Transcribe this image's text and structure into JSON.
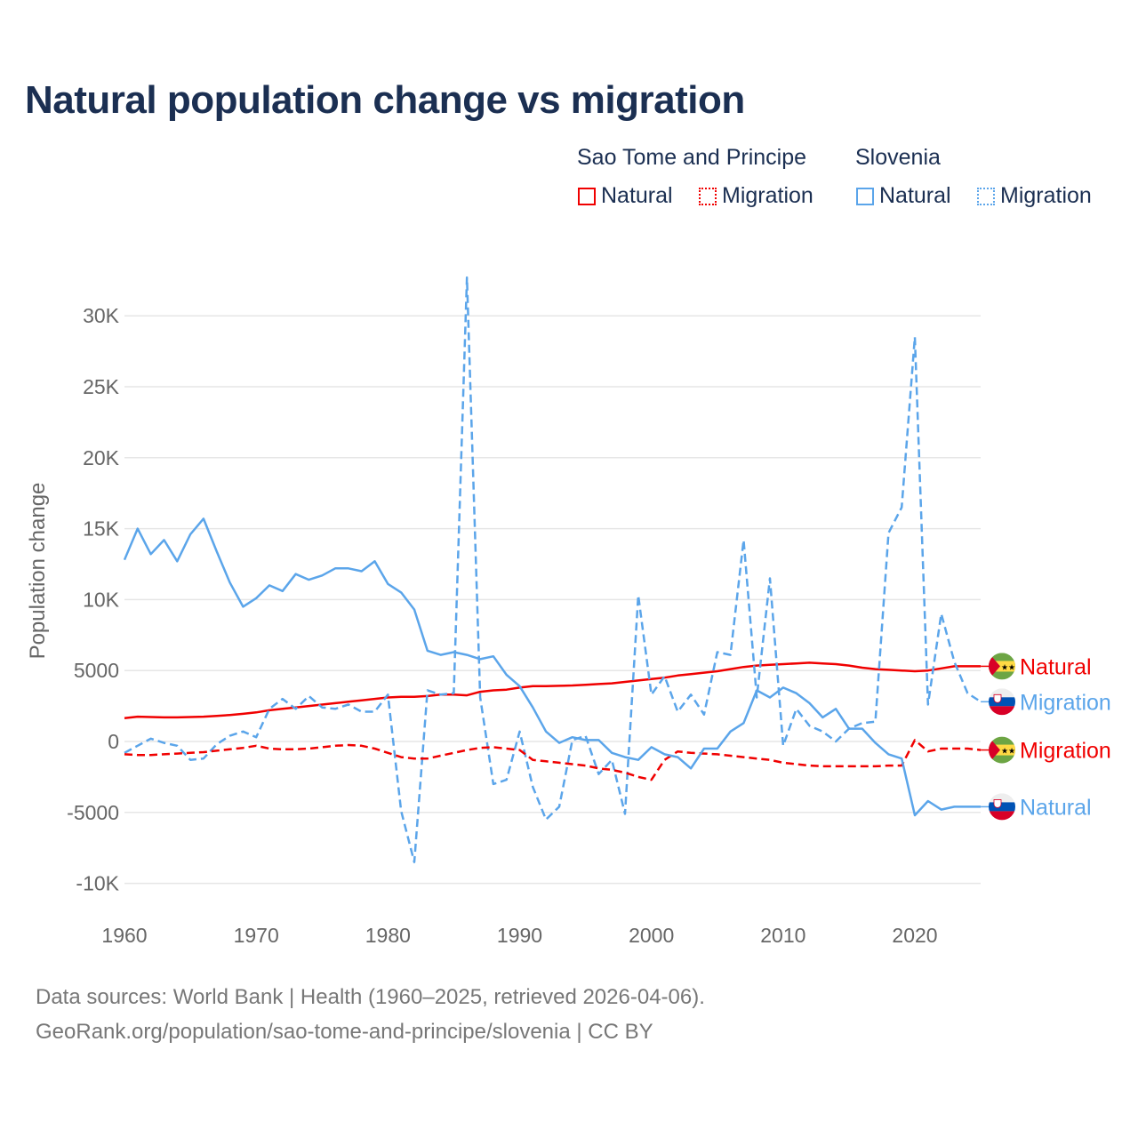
{
  "title": "Natural population change vs migration",
  "legend": {
    "groups": [
      {
        "name": "Sao Tome and Principe",
        "items": [
          {
            "label": "Natural",
            "style": "solid",
            "color": "#f00000"
          },
          {
            "label": "Migration",
            "style": "dotted",
            "color": "#f00000"
          }
        ]
      },
      {
        "name": "Slovenia",
        "items": [
          {
            "label": "Natural",
            "style": "solid",
            "color": "#5ba5ea"
          },
          {
            "label": "Migration",
            "style": "dotted",
            "color": "#5ba5ea"
          }
        ]
      }
    ]
  },
  "footer": {
    "line1": "Data sources: World Bank | Health (1960–2025, retrieved 2026-04-06).",
    "line2": "GeoRank.org/population/sao-tome-and-principe/slovenia | CC BY"
  },
  "chart_data": {
    "type": "line",
    "title": "Natural population change vs migration",
    "xlabel": "",
    "ylabel": "Population change",
    "xlim": [
      1960,
      2025
    ],
    "ylim": [
      -10000,
      32000
    ],
    "x_ticks": [
      1960,
      1970,
      1980,
      1990,
      2000,
      2010,
      2020
    ],
    "x_tick_labels": [
      "1960",
      "1970",
      "1980",
      "1990",
      "2000",
      "2010",
      "2020"
    ],
    "y_ticks": [
      -10000,
      -5000,
      0,
      5000,
      10000,
      15000,
      20000,
      25000,
      30000
    ],
    "y_tick_labels": [
      "-10K",
      "-5000",
      "0",
      "5000",
      "10K",
      "15K",
      "20K",
      "25K",
      "30K"
    ],
    "grid": true,
    "legend_position": "top-right",
    "x_start": 1960,
    "series": [
      {
        "name": "Sao Tome and Principe Natural",
        "end_label": "Natural",
        "country": "stp",
        "color": "#f00000",
        "dash": false,
        "values": [
          1650,
          1750,
          1720,
          1700,
          1700,
          1720,
          1750,
          1800,
          1870,
          1950,
          2050,
          2200,
          2300,
          2400,
          2500,
          2600,
          2700,
          2800,
          2900,
          3000,
          3100,
          3150,
          3150,
          3200,
          3300,
          3300,
          3250,
          3500,
          3600,
          3650,
          3800,
          3900,
          3900,
          3920,
          3950,
          4000,
          4050,
          4100,
          4200,
          4300,
          4400,
          4500,
          4650,
          4750,
          4850,
          4950,
          5100,
          5250,
          5350,
          5400,
          5450,
          5500,
          5550,
          5500,
          5450,
          5350,
          5200,
          5100,
          5050,
          5000,
          4950,
          5000,
          5150,
          5300,
          5300,
          5300
        ]
      },
      {
        "name": "Slovenia Migration",
        "end_label": "Migration",
        "country": "svn",
        "color": "#5ba5ea",
        "dash": true,
        "values": [
          -800,
          -300,
          200,
          -100,
          -300,
          -1300,
          -1200,
          -200,
          400,
          700,
          300,
          2300,
          3000,
          2300,
          3200,
          2400,
          2300,
          2600,
          2100,
          2100,
          3300,
          -4900,
          -8500,
          3600,
          3300,
          3400,
          32700,
          3100,
          -3000,
          -2700,
          700,
          -3200,
          -5500,
          -4600,
          100,
          400,
          -2300,
          -1300,
          -5100,
          10300,
          3300,
          4600,
          2100,
          3300,
          1900,
          6300,
          6100,
          14200,
          3100,
          11500,
          -300,
          2300,
          1100,
          700,
          0,
          900,
          1300,
          1400,
          14700,
          16500,
          28500,
          2600,
          9000,
          5600,
          3400,
          2800
        ]
      },
      {
        "name": "Sao Tome and Principe Migration",
        "end_label": "Migration",
        "country": "stp",
        "color": "#f00000",
        "dash": true,
        "values": [
          -900,
          -950,
          -950,
          -900,
          -850,
          -800,
          -750,
          -650,
          -550,
          -450,
          -300,
          -500,
          -550,
          -550,
          -500,
          -400,
          -300,
          -250,
          -300,
          -500,
          -800,
          -1100,
          -1200,
          -1200,
          -1000,
          -800,
          -600,
          -450,
          -400,
          -500,
          -600,
          -1300,
          -1400,
          -1500,
          -1600,
          -1700,
          -1900,
          -2000,
          -2200,
          -2500,
          -2700,
          -1300,
          -700,
          -800,
          -850,
          -900,
          -1000,
          -1100,
          -1200,
          -1300,
          -1500,
          -1600,
          -1700,
          -1750,
          -1750,
          -1750,
          -1750,
          -1750,
          -1700,
          -1700,
          100,
          -700,
          -500,
          -500,
          -500,
          -600
        ]
      },
      {
        "name": "Slovenia Natural",
        "end_label": "Natural",
        "country": "svn",
        "color": "#5ba5ea",
        "dash": false,
        "values": [
          12800,
          15000,
          13200,
          14200,
          12700,
          14600,
          15700,
          13400,
          11200,
          9500,
          10100,
          11000,
          10600,
          11800,
          11400,
          11700,
          12200,
          12200,
          12000,
          12700,
          11100,
          10500,
          9300,
          6400,
          6100,
          6300,
          6100,
          5800,
          6000,
          4700,
          3900,
          2400,
          700,
          -100,
          300,
          100,
          100,
          -800,
          -1100,
          -1300,
          -400,
          -900,
          -1100,
          -1900,
          -500,
          -500,
          700,
          1300,
          3600,
          3100,
          3800,
          3400,
          2700,
          1700,
          2300,
          900,
          900,
          -100,
          -900,
          -1200,
          -5200,
          -4200,
          -4800,
          -4600,
          -4600,
          -4600
        ]
      }
    ]
  }
}
